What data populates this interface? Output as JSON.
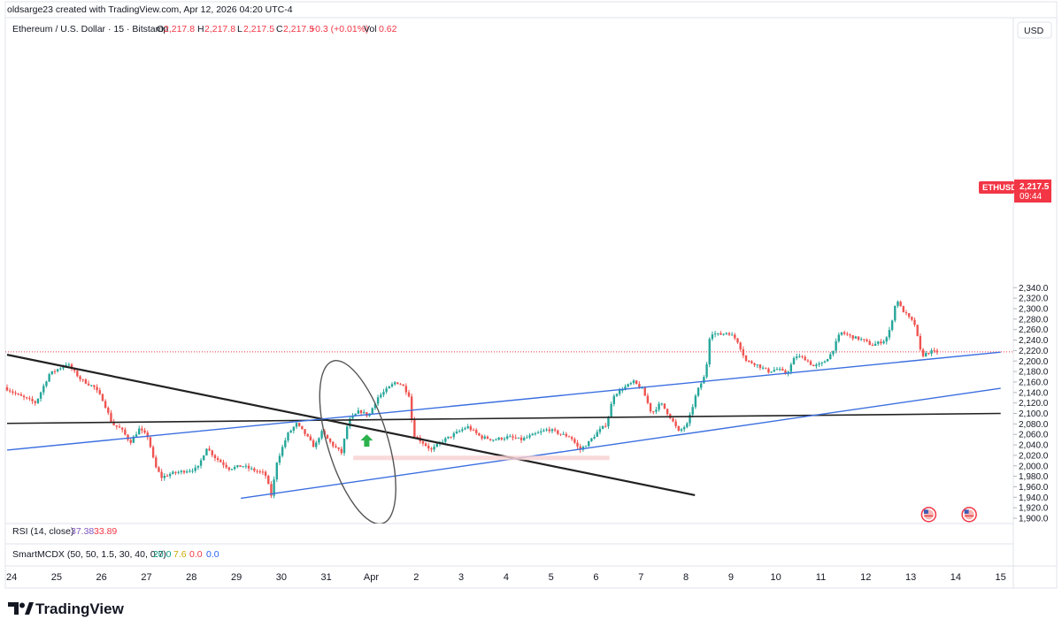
{
  "top_caption": "oldsarge23 created with TradingView.com, Apr 12, 2026 04:20 UTC-4",
  "legend": {
    "symbol": "Ethereum / U.S. Dollar · 15 · Bitstamp",
    "o_label": "O",
    "o_value": "2,217.8",
    "h_label": "H",
    "h_value": "2,217.8",
    "l_label": "L",
    "l_value": "2,217.5",
    "c_label": "C",
    "c_value": "2,217.5",
    "change": "+0.3 (+0.01%)",
    "vol_label": "Vol",
    "vol_value": "0.62"
  },
  "currency": "USD",
  "price_tag": {
    "symbol": "ETHUSD",
    "price": "2,217.5",
    "countdown": "09:44"
  },
  "indicators": {
    "rsi": {
      "label": "RSI (14, close)",
      "v1": "37.38",
      "v2": "33.89"
    },
    "mcdx": {
      "label": "SmartMCDX (50, 50, 1.5, 30, 40, 0.7)",
      "v1": "20.0",
      "v2": "7.6",
      "v3": "0.0",
      "v4": "0.0"
    }
  },
  "brand": "TradingView",
  "colors": {
    "up": "#26a69a",
    "down": "#ef5350",
    "blue_line": "#2962ff",
    "black_line": "#000000",
    "last_price_tag": "#f23645",
    "rsi_v1": "#7e57c2",
    "rsi_v2": "#f23645",
    "mcdx_v1": "#089981",
    "mcdx_v2": "#f9d71c",
    "mcdx_v3": "#f23645",
    "mcdx_v4": "#2962ff"
  },
  "chart_data": {
    "type": "candlestick",
    "timeframe": "15",
    "ylim": [
      1900,
      2340
    ],
    "y_ticks": [
      "2,340.0",
      "2,320.0",
      "2,300.0",
      "2,280.0",
      "2,260.0",
      "2,240.0",
      "2,220.0",
      "2,200.0",
      "2,180.0",
      "2,160.0",
      "2,140.0",
      "2,120.0",
      "2,100.0",
      "2,080.0",
      "2,060.0",
      "2,040.0",
      "2,020.0",
      "2,000.0",
      "1,980.0",
      "1,960.0",
      "1,940.0",
      "1,920.0",
      "1,900.0"
    ],
    "x_ticks": [
      "24",
      "25",
      "26",
      "27",
      "28",
      "29",
      "30",
      "31",
      "Apr",
      "2",
      "3",
      "4",
      "5",
      "6",
      "7",
      "8",
      "9",
      "10",
      "11",
      "12",
      "13",
      "14",
      "15"
    ],
    "price_path": [
      [
        23.9,
        2150
      ],
      [
        24.2,
        2135
      ],
      [
        24.6,
        2120
      ],
      [
        24.9,
        2175
      ],
      [
        25.3,
        2195
      ],
      [
        25.6,
        2165
      ],
      [
        25.9,
        2150
      ],
      [
        26.1,
        2125
      ],
      [
        26.3,
        2080
      ],
      [
        26.5,
        2070
      ],
      [
        26.7,
        2045
      ],
      [
        26.9,
        2070
      ],
      [
        27.1,
        2055
      ],
      [
        27.25,
        2000
      ],
      [
        27.4,
        1978
      ],
      [
        27.6,
        1985
      ],
      [
        27.9,
        1990
      ],
      [
        28.2,
        1995
      ],
      [
        28.4,
        2035
      ],
      [
        28.6,
        2015
      ],
      [
        28.9,
        1995
      ],
      [
        29.2,
        2000
      ],
      [
        29.5,
        1990
      ],
      [
        29.7,
        1985
      ],
      [
        29.85,
        1940
      ],
      [
        29.95,
        2005
      ],
      [
        30.2,
        2060
      ],
      [
        30.4,
        2080
      ],
      [
        30.6,
        2060
      ],
      [
        30.8,
        2035
      ],
      [
        30.95,
        2065
      ],
      [
        31.2,
        2040
      ],
      [
        31.4,
        2025
      ],
      [
        31.55,
        2085
      ],
      [
        31.8,
        2105
      ],
      [
        32.0,
        2095
      ],
      [
        32.2,
        2130
      ],
      [
        32.4,
        2145
      ],
      [
        32.6,
        2160
      ],
      [
        32.75,
        2155
      ],
      [
        32.9,
        2135
      ],
      [
        33.0,
        2060
      ],
      [
        33.2,
        2045
      ],
      [
        33.4,
        2030
      ],
      [
        33.6,
        2045
      ],
      [
        33.9,
        2060
      ],
      [
        34.2,
        2075
      ],
      [
        34.5,
        2055
      ],
      [
        34.8,
        2050
      ],
      [
        35.1,
        2055
      ],
      [
        35.4,
        2050
      ],
      [
        35.7,
        2060
      ],
      [
        36.0,
        2070
      ],
      [
        36.3,
        2060
      ],
      [
        36.5,
        2055
      ],
      [
        36.7,
        2030
      ],
      [
        36.9,
        2045
      ],
      [
        37.1,
        2065
      ],
      [
        37.3,
        2080
      ],
      [
        37.45,
        2135
      ],
      [
        37.7,
        2150
      ],
      [
        37.9,
        2160
      ],
      [
        38.1,
        2145
      ],
      [
        38.3,
        2100
      ],
      [
        38.5,
        2120
      ],
      [
        38.7,
        2095
      ],
      [
        38.9,
        2065
      ],
      [
        39.1,
        2080
      ],
      [
        39.3,
        2140
      ],
      [
        39.5,
        2175
      ],
      [
        39.6,
        2255
      ],
      [
        39.8,
        2250
      ],
      [
        40.0,
        2255
      ],
      [
        40.2,
        2240
      ],
      [
        40.4,
        2200
      ],
      [
        40.6,
        2195
      ],
      [
        40.9,
        2180
      ],
      [
        41.1,
        2185
      ],
      [
        41.3,
        2175
      ],
      [
        41.5,
        2210
      ],
      [
        41.7,
        2205
      ],
      [
        41.9,
        2190
      ],
      [
        42.1,
        2195
      ],
      [
        42.3,
        2215
      ],
      [
        42.5,
        2255
      ],
      [
        42.8,
        2245
      ],
      [
        43.0,
        2240
      ],
      [
        43.2,
        2230
      ],
      [
        43.5,
        2240
      ],
      [
        43.6,
        2260
      ],
      [
        43.75,
        2320
      ],
      [
        43.85,
        2300
      ],
      [
        44.0,
        2285
      ],
      [
        44.15,
        2270
      ],
      [
        44.3,
        2210
      ],
      [
        44.5,
        2218
      ],
      [
        44.6,
        2217.5
      ]
    ],
    "levels": [
      {
        "price": 2217.5,
        "label": "ETHUSD 2,217.5",
        "style": "dotted"
      }
    ],
    "annotations": {
      "trendlines": [
        {
          "color": "black",
          "from": [
            23.9,
            2212
          ],
          "to": [
            39.2,
            1944
          ]
        },
        {
          "color": "black",
          "from": [
            23.9,
            2081
          ],
          "to": [
            46.0,
            2100
          ]
        },
        {
          "color": "blue",
          "from": [
            23.9,
            2030
          ],
          "to": [
            46.0,
            2217
          ]
        },
        {
          "color": "blue",
          "from": [
            29.1,
            1938
          ],
          "to": [
            46.0,
            2148
          ]
        }
      ],
      "ellipse": {
        "center": [
          31.7,
          2045
        ],
        "note": "hand-drawn loop"
      },
      "arrow": {
        "direction": "up",
        "at": [
          31.9,
          2045
        ],
        "color": "green"
      },
      "zone": {
        "from": [
          31.6,
          2016
        ],
        "to": [
          37.3,
          2013
        ],
        "color": "pink"
      },
      "event_icons": [
        [
          44.4,
          1907
        ],
        [
          45.3,
          1907
        ]
      ]
    }
  }
}
